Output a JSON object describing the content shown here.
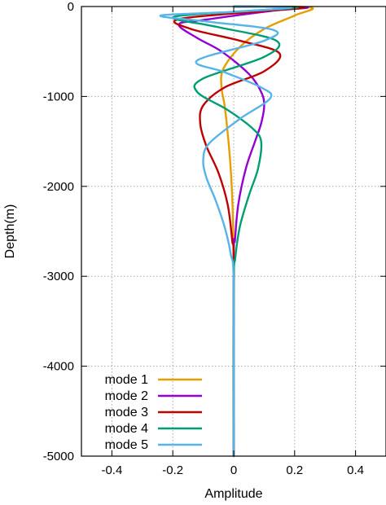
{
  "chart_data": {
    "type": "line",
    "title": "",
    "xlabel": "Amplitude",
    "ylabel": "Depth(m)",
    "xlim": [
      -0.5,
      0.5
    ],
    "ylim": [
      -5000,
      0
    ],
    "xticks": [
      -0.4,
      -0.2,
      0,
      0.2,
      0.4
    ],
    "xtick_labels": [
      "-0.4",
      "-0.2",
      "0",
      "0.2",
      "0.4"
    ],
    "yticks": [
      0,
      -1000,
      -2000,
      -3000,
      -4000,
      -5000
    ],
    "ytick_labels": [
      "0",
      "-1000",
      "-2000",
      "-3000",
      "-4000",
      "-5000"
    ],
    "grid": true,
    "legend_position": "bottom-left",
    "series": [
      {
        "name": "mode 1",
        "color": "#e69f00",
        "points": [
          [
            0.0,
            0
          ],
          [
            0.25,
            -10
          ],
          [
            0.2,
            -100
          ],
          [
            0.1,
            -250
          ],
          [
            0.02,
            -450
          ],
          [
            -0.035,
            -700
          ],
          [
            -0.04,
            -900
          ],
          [
            -0.03,
            -1100
          ],
          [
            -0.02,
            -1400
          ],
          [
            -0.01,
            -1800
          ],
          [
            -0.004,
            -2200
          ],
          [
            -0.001,
            -2600
          ],
          [
            0.0,
            -2800
          ],
          [
            0.0,
            -5000
          ]
        ]
      },
      {
        "name": "mode 2",
        "color": "#9400d3",
        "points": [
          [
            0.0,
            0
          ],
          [
            0.24,
            -10
          ],
          [
            0.12,
            -50
          ],
          [
            -0.1,
            -150
          ],
          [
            -0.18,
            -200
          ],
          [
            -0.12,
            -350
          ],
          [
            -0.04,
            -500
          ],
          [
            0.05,
            -750
          ],
          [
            0.09,
            -950
          ],
          [
            0.1,
            -1100
          ],
          [
            0.09,
            -1300
          ],
          [
            0.07,
            -1500
          ],
          [
            0.04,
            -1800
          ],
          [
            0.015,
            -2200
          ],
          [
            0.004,
            -2600
          ],
          [
            0.0,
            -2800
          ],
          [
            0.0,
            -5000
          ]
        ]
      },
      {
        "name": "mode 3",
        "color": "#c00000",
        "points": [
          [
            0.0,
            0
          ],
          [
            0.23,
            -10
          ],
          [
            0.1,
            -50
          ],
          [
            -0.18,
            -140
          ],
          [
            -0.14,
            -250
          ],
          [
            0.02,
            -380
          ],
          [
            0.15,
            -520
          ],
          [
            0.1,
            -720
          ],
          [
            -0.03,
            -900
          ],
          [
            -0.1,
            -1100
          ],
          [
            -0.11,
            -1300
          ],
          [
            -0.09,
            -1550
          ],
          [
            -0.05,
            -1850
          ],
          [
            -0.02,
            -2200
          ],
          [
            -0.005,
            -2600
          ],
          [
            0.0,
            -2900
          ],
          [
            0.0,
            -5000
          ]
        ]
      },
      {
        "name": "mode 4",
        "color": "#009e73",
        "points": [
          [
            0.0,
            0
          ],
          [
            0.21,
            -10
          ],
          [
            0.0,
            -60
          ],
          [
            -0.2,
            -120
          ],
          [
            -0.05,
            -230
          ],
          [
            0.14,
            -380
          ],
          [
            0.1,
            -560
          ],
          [
            -0.1,
            -800
          ],
          [
            -0.12,
            -950
          ],
          [
            -0.02,
            -1150
          ],
          [
            0.06,
            -1350
          ],
          [
            0.09,
            -1500
          ],
          [
            0.08,
            -1800
          ],
          [
            0.05,
            -2100
          ],
          [
            0.02,
            -2450
          ],
          [
            0.005,
            -2800
          ],
          [
            0.0,
            -3100
          ],
          [
            0.0,
            -5000
          ]
        ]
      },
      {
        "name": "mode 5",
        "color": "#56b4e9",
        "points": [
          [
            0.0,
            0
          ],
          [
            0.19,
            -10
          ],
          [
            0.0,
            -60
          ],
          [
            -0.24,
            -100
          ],
          [
            -0.08,
            -170
          ],
          [
            0.13,
            -260
          ],
          [
            0.1,
            -380
          ],
          [
            -0.12,
            -600
          ],
          [
            -0.03,
            -730
          ],
          [
            0.09,
            -900
          ],
          [
            0.12,
            -1020
          ],
          [
            0.02,
            -1250
          ],
          [
            -0.08,
            -1520
          ],
          [
            -0.1,
            -1700
          ],
          [
            -0.09,
            -1900
          ],
          [
            -0.06,
            -2150
          ],
          [
            -0.03,
            -2450
          ],
          [
            -0.01,
            -2750
          ],
          [
            0.0,
            -3100
          ],
          [
            0.0,
            -5000
          ]
        ]
      }
    ]
  }
}
